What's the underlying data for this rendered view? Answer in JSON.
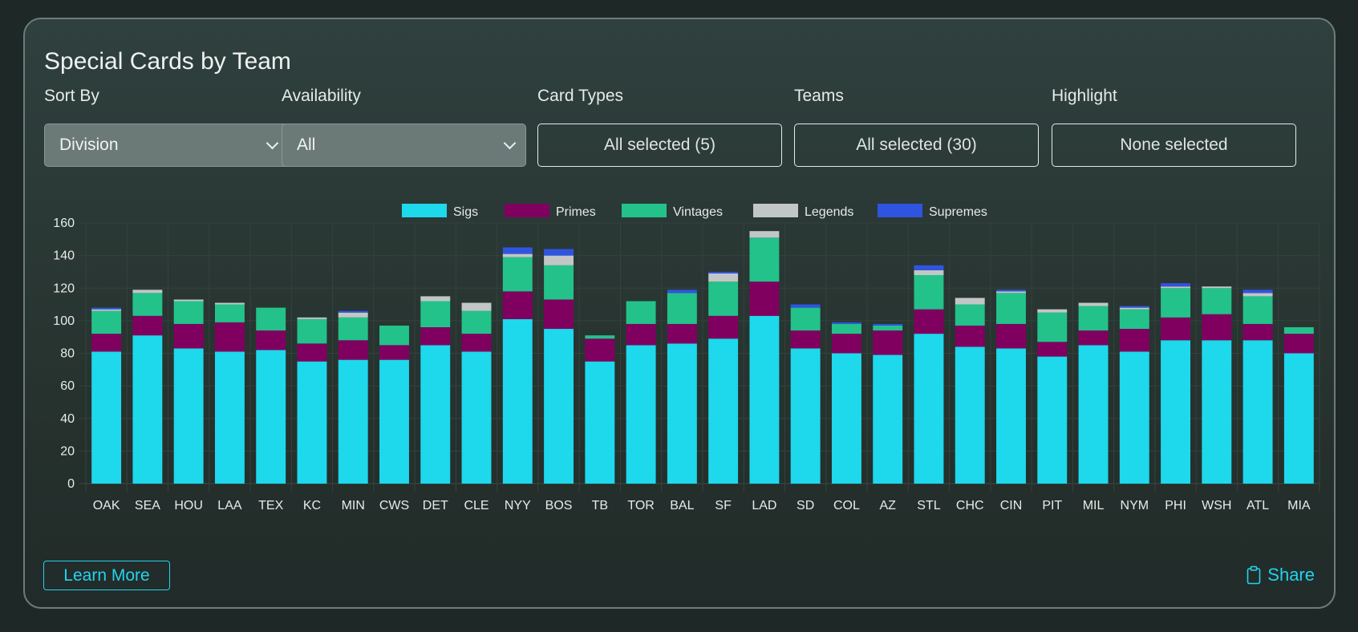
{
  "title": "Special Cards by Team",
  "filters": [
    {
      "label": "Sort By",
      "value": "Division",
      "kind": "select"
    },
    {
      "label": "Availability",
      "value": "All",
      "kind": "select"
    },
    {
      "label": "Card Types",
      "value": "All selected (5)",
      "kind": "multi"
    },
    {
      "label": "Teams",
      "value": "All selected (30)",
      "kind": "multi"
    },
    {
      "label": "Highlight",
      "value": "None selected",
      "kind": "multi"
    }
  ],
  "learn_more": "Learn More",
  "share": "Share",
  "icons": {
    "share": "clipboard-icon",
    "dropdown": "chevron-down-icon"
  },
  "chart_data": {
    "type": "bar",
    "stacked": true,
    "legend_position": "top",
    "grid": true,
    "ylim": [
      0,
      160
    ],
    "yticks": [
      "0",
      "20",
      "40",
      "60",
      "80",
      "100",
      "120",
      "140",
      "160"
    ],
    "categories": [
      "OAK",
      "SEA",
      "HOU",
      "LAA",
      "TEX",
      "KC",
      "MIN",
      "CWS",
      "DET",
      "CLE",
      "NYY",
      "BOS",
      "TB",
      "TOR",
      "BAL",
      "SF",
      "LAD",
      "SD",
      "COL",
      "AZ",
      "STL",
      "CHC",
      "CIN",
      "PIT",
      "MIL",
      "NYM",
      "PHI",
      "WSH",
      "ATL",
      "MIA"
    ],
    "series": [
      {
        "name": "Sigs",
        "color": "#1ed8ec",
        "values": [
          81,
          91,
          83,
          81,
          82,
          75,
          76,
          76,
          85,
          81,
          101,
          95,
          75,
          85,
          86,
          89,
          103,
          83,
          80,
          79,
          92,
          84,
          83,
          78,
          85,
          81,
          88,
          88,
          88,
          80
        ]
      },
      {
        "name": "Primes",
        "color": "#800060",
        "values": [
          11,
          12,
          15,
          18,
          12,
          11,
          12,
          9,
          11,
          11,
          17,
          18,
          14,
          13,
          12,
          14,
          21,
          11,
          12,
          15,
          15,
          13,
          15,
          9,
          9,
          14,
          14,
          16,
          10,
          12
        ]
      },
      {
        "name": "Vintages",
        "color": "#23c28a",
        "values": [
          14,
          14,
          14,
          11,
          14,
          15,
          14,
          12,
          16,
          14,
          21,
          21,
          2,
          14,
          19,
          21,
          27,
          14,
          6,
          3,
          21,
          13,
          19,
          18,
          15,
          12,
          18,
          16,
          17,
          4
        ]
      },
      {
        "name": "Legends",
        "color": "#c2c6c6",
        "values": [
          1,
          2,
          1,
          1,
          0,
          1,
          3,
          0,
          3,
          5,
          2,
          6,
          0,
          0,
          0,
          5,
          4,
          0,
          0,
          0,
          3,
          4,
          1,
          2,
          2,
          1,
          1,
          1,
          2,
          0
        ]
      },
      {
        "name": "Supremes",
        "color": "#2f55e0",
        "values": [
          1,
          0,
          0,
          0,
          0,
          0,
          1,
          0,
          0,
          0,
          4,
          4,
          0,
          0,
          2,
          1,
          0,
          2,
          1,
          1,
          3,
          0,
          1,
          0,
          0,
          1,
          2,
          0,
          2,
          0
        ]
      }
    ]
  }
}
